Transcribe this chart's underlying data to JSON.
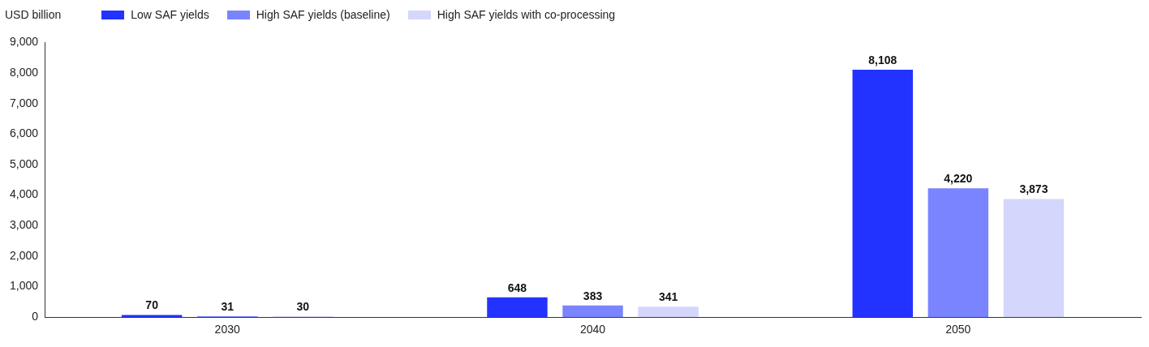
{
  "chart_data": {
    "type": "bar",
    "ylabel": "USD billion",
    "categories": [
      "2030",
      "2040",
      "2050"
    ],
    "series": [
      {
        "name": "Low SAF yields",
        "color": "#2233ff",
        "values": [
          70,
          648,
          8108
        ],
        "value_labels": [
          "70",
          "648",
          "8,108"
        ]
      },
      {
        "name": "High SAF yields (baseline)",
        "color": "#7b84ff",
        "values": [
          31,
          383,
          4220
        ],
        "value_labels": [
          "31",
          "383",
          "4,220"
        ]
      },
      {
        "name": "High SAF yields with co-processing",
        "color": "#d4d6fc",
        "values": [
          30,
          341,
          3873
        ],
        "value_labels": [
          "30",
          "341",
          "3,873"
        ]
      }
    ],
    "ylim": [
      0,
      9000
    ],
    "yticks": [
      0,
      {
        "value": 1000,
        "label": "1,000"
      },
      {
        "value": 2000,
        "label": "2,000"
      },
      {
        "value": 3000,
        "label": "3,000"
      },
      {
        "value": 4000,
        "label": "4,000"
      },
      {
        "value": 5000,
        "label": "5,000"
      },
      {
        "value": 6000,
        "label": "6,000"
      },
      {
        "value": 7000,
        "label": "7,000"
      },
      {
        "value": 8000,
        "label": "8,000"
      },
      {
        "value": 9000,
        "label": "9,000"
      }
    ],
    "grid": false,
    "legend": "top left"
  }
}
